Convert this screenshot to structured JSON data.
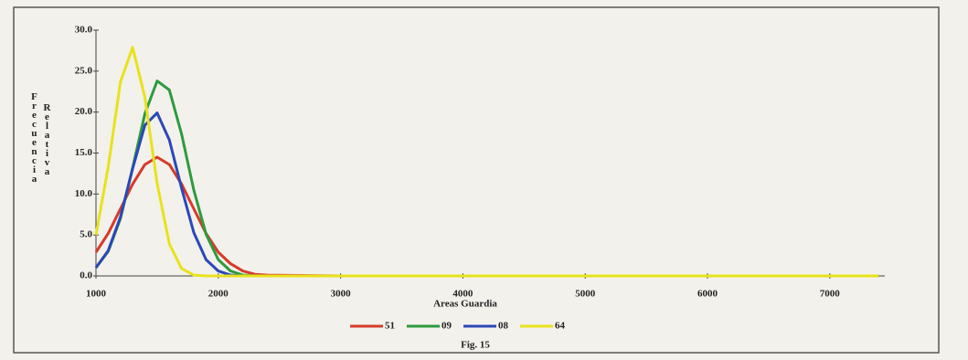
{
  "chart_data": {
    "type": "line",
    "y_label": [
      "Frecuencia",
      "Relativa"
    ],
    "x_label": "Areas Guardia",
    "caption": "Fig. 15",
    "x": [
      1000,
      1100,
      1200,
      1300,
      1400,
      1500,
      1600,
      1700,
      1800,
      1900,
      2000,
      2100,
      2200,
      2300,
      2400,
      3000,
      4000,
      5000,
      6000,
      7000,
      7400
    ],
    "series": [
      {
        "name": "51",
        "color": "#d63a2a",
        "values": [
          2.9,
          5.2,
          8.2,
          11.2,
          13.6,
          14.5,
          13.6,
          11.2,
          8.2,
          5.2,
          2.9,
          1.5,
          0.6,
          0.2,
          0.1,
          0,
          0,
          0,
          0,
          0,
          0
        ]
      },
      {
        "name": "09",
        "color": "#2e9a3e",
        "values": [
          1.0,
          3.0,
          7.0,
          13.2,
          19.8,
          23.8,
          22.7,
          17.3,
          10.5,
          5.1,
          2.0,
          0.6,
          0.1,
          0,
          0,
          0,
          0,
          0,
          0,
          0,
          0
        ]
      },
      {
        "name": "08",
        "color": "#2b48b8",
        "values": [
          1.0,
          3.1,
          7.2,
          13.1,
          18.4,
          19.9,
          16.6,
          10.7,
          5.3,
          2.0,
          0.6,
          0.1,
          0,
          0,
          0,
          0,
          0,
          0,
          0,
          0,
          0
        ]
      },
      {
        "name": "64",
        "color": "#e8e21c",
        "values": [
          5.0,
          13.3,
          23.7,
          27.9,
          21.8,
          11.3,
          3.9,
          0.9,
          0.1,
          0,
          0,
          0,
          0,
          0,
          0,
          0,
          0,
          0,
          0,
          0,
          0
        ]
      }
    ],
    "xlim": [
      1000,
      7450
    ],
    "xticks": [
      1000,
      2000,
      3000,
      4000,
      5000,
      6000,
      7000
    ],
    "ylim": [
      0,
      30
    ],
    "yticks": [
      {
        "value": 0,
        "label": "0.0"
      },
      {
        "value": 5,
        "label": "5.0"
      },
      {
        "value": 10,
        "label": "10.0"
      },
      {
        "value": 15,
        "label": "15.0"
      },
      {
        "value": 20,
        "label": "20.0"
      },
      {
        "value": 25,
        "label": "25.0"
      },
      {
        "value": 30,
        "label": "30.0"
      }
    ],
    "grid": false
  }
}
